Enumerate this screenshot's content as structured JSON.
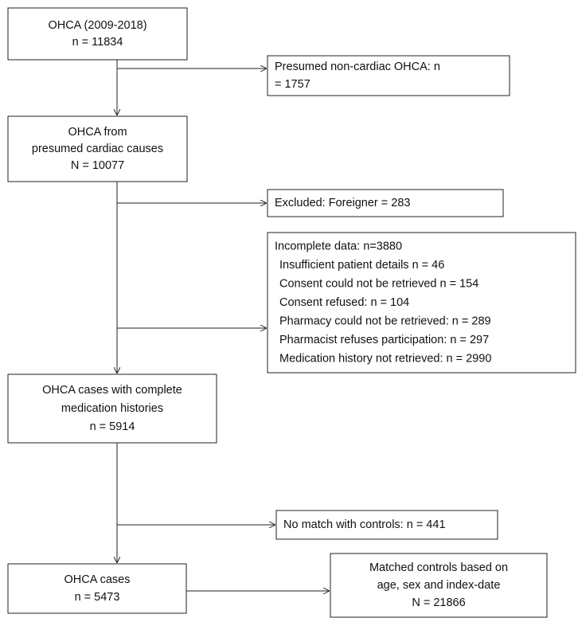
{
  "nodes": [
    {
      "lines": [
        "OHCA (2009-2018)",
        "n = 11834"
      ]
    },
    {
      "lines": [
        "Presumed non-cardiac OHCA: n",
        "= 1757"
      ]
    },
    {
      "lines": [
        "OHCA from",
        "presumed cardiac causes",
        "N = 10077"
      ]
    },
    {
      "lines": [
        "Excluded: Foreigner = 283"
      ]
    },
    {
      "lines": [
        "Incomplete data: n=3880",
        "Insufficient patient details  n = 46",
        "Consent could not be retrieved n = 154",
        "Consent refused: n = 104",
        "Pharmacy could not be retrieved: n = 289",
        "Pharmacist refuses participation: n = 297",
        "Medication history not retrieved: n = 2990"
      ]
    },
    {
      "lines": [
        "OHCA cases with complete",
        "medication histories",
        "n = 5914"
      ]
    },
    {
      "lines": [
        "No match with controls: n = 441"
      ]
    },
    {
      "lines": [
        "OHCA cases",
        "n = 5473"
      ]
    },
    {
      "lines": [
        "Matched controls based on",
        "age, sex and index-date",
        "N = 21866"
      ]
    }
  ]
}
